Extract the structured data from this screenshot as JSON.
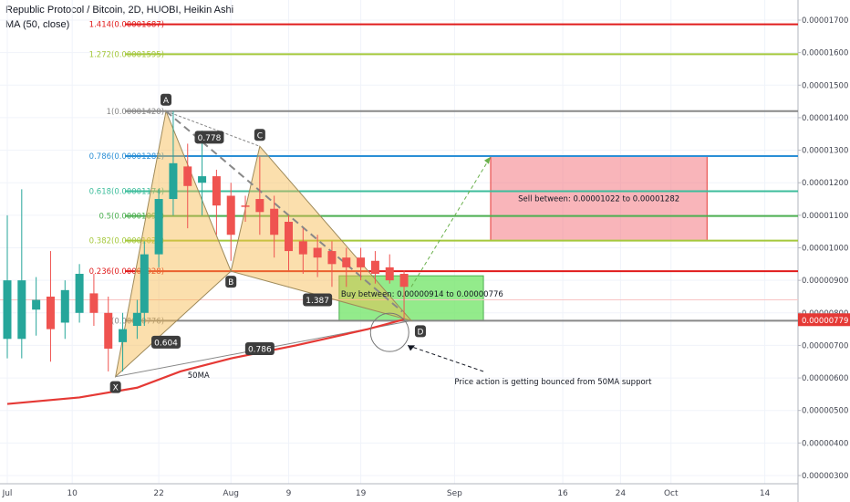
{
  "header": {
    "title": "Republic Protocol / Bitcoin, 2D, HUOBI, Heikin Ashi",
    "indicator": "MA (50, close)"
  },
  "chart_data": {
    "type": "candlestick",
    "ylim": [
      3e-06,
      1.8e-06
    ],
    "y_ticks": [
      "0.00001700",
      "0.00001600",
      "0.00001500",
      "0.00001400",
      "0.00001300",
      "0.00001200",
      "0.00001100",
      "0.00001000",
      "0.00000900",
      "0.00000800",
      "0.00000700",
      "0.00000600",
      "0.00000500",
      "0.00000400",
      "0.00000300"
    ],
    "y_tick_values": [
      1.7e-05,
      1.6e-05,
      1.5e-05,
      1.4e-05,
      1.3e-05,
      1.2e-05,
      1.1e-05,
      1e-05,
      9e-06,
      8e-06,
      7e-06,
      6e-06,
      5e-06,
      4e-06,
      3e-06
    ],
    "x_ticks": [
      {
        "label": "Jul",
        "day": 0
      },
      {
        "label": "10",
        "day": 9
      },
      {
        "label": "22",
        "day": 21
      },
      {
        "label": "Aug",
        "day": 31
      },
      {
        "label": "9",
        "day": 39
      },
      {
        "label": "19",
        "day": 49
      },
      {
        "label": "Sep",
        "day": 62
      },
      {
        "label": "16",
        "day": 77
      },
      {
        "label": "24",
        "day": 85
      },
      {
        "label": "Oct",
        "day": 92
      },
      {
        "label": "14",
        "day": 105
      }
    ],
    "current_price": {
      "label": "0.00000779",
      "value": 7.79e-06
    },
    "fib_levels": [
      {
        "label": "1.414(0.00001687)",
        "value": 1.687e-05,
        "color": "#e01b1b"
      },
      {
        "label": "1.272(0.00001595)",
        "value": 1.595e-05,
        "color": "#a5c83c"
      },
      {
        "label": "1(0.00001420)",
        "value": 1.42e-05,
        "color": "#888888"
      },
      {
        "label": "0.786(0.00001282)",
        "value": 1.282e-05,
        "color": "#2b8fd6"
      },
      {
        "label": "0.618(0.00001174)",
        "value": 1.174e-05,
        "color": "#3dbd9c"
      },
      {
        "label": "0.5(0.00001098)",
        "value": 1.098e-05,
        "color": "#4caf50"
      },
      {
        "label": "0.382(0.00001022)",
        "value": 1.022e-05,
        "color": "#a5c83c"
      },
      {
        "label": "0.236(0.00000928)",
        "value": 9.28e-06,
        "color": "#e01b1b"
      },
      {
        "label": "0(0.00000776)",
        "value": 7.76e-06,
        "color": "#888888"
      }
    ],
    "pattern_points": [
      {
        "label": "X",
        "day": 15,
        "value": 6.04e-06
      },
      {
        "label": "A",
        "day": 22,
        "value": 1.42e-05
      },
      {
        "label": "B",
        "day": 31,
        "value": 9.28e-06
      },
      {
        "label": "C",
        "day": 35,
        "value": 1.312e-05
      },
      {
        "label": "D",
        "day": 56,
        "value": 7.76e-06
      }
    ],
    "ratios": [
      {
        "label": "0.778",
        "day": 28,
        "value": 1.34e-05
      },
      {
        "label": "0.604",
        "day": 22,
        "value": 7.1e-06
      },
      {
        "label": "1.387",
        "day": 43,
        "value": 8.4e-06
      },
      {
        "label": "0.786",
        "day": 35,
        "value": 6.9e-06
      }
    ],
    "candles": [
      {
        "day": 0,
        "open": 9e-06,
        "close": 7.2e-06,
        "high": 1.1e-05,
        "low": 6.6e-06,
        "color": "green"
      },
      {
        "day": 2,
        "open": 7.2e-06,
        "close": 9e-06,
        "high": 1.18e-05,
        "low": 6.6e-06,
        "color": "green"
      },
      {
        "day": 4,
        "open": 8.1e-06,
        "close": 8.4e-06,
        "high": 9.1e-06,
        "low": 7.3e-06,
        "color": "green"
      },
      {
        "day": 6,
        "open": 8.5e-06,
        "close": 7.5e-06,
        "high": 9.9e-06,
        "low": 6.5e-06,
        "color": "red"
      },
      {
        "day": 8,
        "open": 7.7e-06,
        "close": 8.7e-06,
        "high": 9e-06,
        "low": 7.2e-06,
        "color": "green"
      },
      {
        "day": 10,
        "open": 8e-06,
        "close": 9.2e-06,
        "high": 9.5e-06,
        "low": 7.7e-06,
        "color": "green"
      },
      {
        "day": 12,
        "open": 8.6e-06,
        "close": 8e-06,
        "high": 9.2e-06,
        "low": 7.6e-06,
        "color": "red"
      },
      {
        "day": 14,
        "open": 8e-06,
        "close": 6.9e-06,
        "high": 8.5e-06,
        "low": 6.2e-06,
        "color": "red"
      },
      {
        "day": 16,
        "open": 7.1e-06,
        "close": 7.5e-06,
        "high": 8e-06,
        "low": 6.2e-06,
        "color": "green"
      },
      {
        "day": 18,
        "open": 7.6e-06,
        "close": 8e-06,
        "high": 8.4e-06,
        "low": 7.2e-06,
        "color": "green"
      },
      {
        "day": 19,
        "open": 8e-06,
        "close": 9.8e-06,
        "high": 1.02e-05,
        "low": 7.6e-06,
        "color": "green"
      },
      {
        "day": 21,
        "open": 9.8e-06,
        "close": 1.15e-05,
        "high": 1.18e-05,
        "low": 9.4e-06,
        "color": "green"
      },
      {
        "day": 23,
        "open": 1.15e-05,
        "close": 1.26e-05,
        "high": 1.42e-05,
        "low": 1.1e-05,
        "color": "green"
      },
      {
        "day": 25,
        "open": 1.25e-05,
        "close": 1.19e-05,
        "high": 1.32e-05,
        "low": 1.06e-05,
        "color": "red"
      },
      {
        "day": 27,
        "open": 1.2e-05,
        "close": 1.22e-05,
        "high": 1.36e-05,
        "low": 1.1e-05,
        "color": "green"
      },
      {
        "day": 29,
        "open": 1.22e-05,
        "close": 1.13e-05,
        "high": 1.24e-05,
        "low": 1.04e-05,
        "color": "red"
      },
      {
        "day": 31,
        "open": 1.16e-05,
        "close": 1.04e-05,
        "high": 1.2e-05,
        "low": 9.6e-06,
        "color": "red"
      },
      {
        "day": 33,
        "open": 1.13e-05,
        "close": 1.13e-05,
        "high": 1.16e-05,
        "low": 1.08e-05,
        "color": "red"
      },
      {
        "day": 35,
        "open": 1.15e-05,
        "close": 1.11e-05,
        "high": 1.28e-05,
        "low": 1.04e-05,
        "color": "red"
      },
      {
        "day": 37,
        "open": 1.12e-05,
        "close": 1.04e-05,
        "high": 1.16e-05,
        "low": 9.7e-06,
        "color": "red"
      },
      {
        "day": 39,
        "open": 1.08e-05,
        "close": 9.9e-06,
        "high": 1.1e-05,
        "low": 9.3e-06,
        "color": "red"
      },
      {
        "day": 41,
        "open": 1.02e-05,
        "close": 9.8e-06,
        "high": 1.06e-05,
        "low": 9.2e-06,
        "color": "red"
      },
      {
        "day": 43,
        "open": 1e-05,
        "close": 9.7e-06,
        "high": 1.04e-05,
        "low": 9.1e-06,
        "color": "red"
      },
      {
        "day": 45,
        "open": 9.9e-06,
        "close": 9.5e-06,
        "high": 1.02e-05,
        "low": 8.8e-06,
        "color": "red"
      },
      {
        "day": 47,
        "open": 9.7e-06,
        "close": 9.4e-06,
        "high": 1e-05,
        "low": 8.8e-06,
        "color": "red"
      },
      {
        "day": 49,
        "open": 9.7e-06,
        "close": 9.4e-06,
        "high": 1e-05,
        "low": 9e-06,
        "color": "red"
      },
      {
        "day": 51,
        "open": 9.6e-06,
        "close": 9.2e-06,
        "high": 9.9e-06,
        "low": 8.9e-06,
        "color": "red"
      },
      {
        "day": 53,
        "open": 9.4e-06,
        "close": 9e-06,
        "high": 9.8e-06,
        "low": 8.9e-06,
        "color": "red"
      },
      {
        "day": 55,
        "open": 9.2e-06,
        "close": 8.8e-06,
        "high": 9.3e-06,
        "low": 7.8e-06,
        "color": "red"
      }
    ],
    "ma50": [
      {
        "day": 0,
        "value": 5.2e-06
      },
      {
        "day": 10,
        "value": 5.4e-06
      },
      {
        "day": 18,
        "value": 5.7e-06
      },
      {
        "day": 24,
        "value": 6.2e-06
      },
      {
        "day": 31,
        "value": 6.6e-06
      },
      {
        "day": 40,
        "value": 7e-06
      },
      {
        "day": 50,
        "value": 7.5e-06
      },
      {
        "day": 55,
        "value": 7.8e-06
      }
    ],
    "ma_label": "50MA",
    "sell_zone": {
      "label": "Sell between: 0.00001022 to 0.00001282",
      "from": 1.022e-05,
      "to": 1.282e-05,
      "day_start": 67,
      "day_end": 97
    },
    "buy_zone": {
      "label": "Buy between: 0.00000914 to 0.00000776",
      "from": 7.76e-06,
      "to": 9.14e-06,
      "day_start": 46,
      "day_end": 66
    },
    "annotation": "Price action is getting bounced from 50MA support",
    "colors": {
      "up": "#26a69a",
      "down": "#ef5350",
      "ma": "#e53935",
      "pattern": "#f6b94a"
    }
  }
}
